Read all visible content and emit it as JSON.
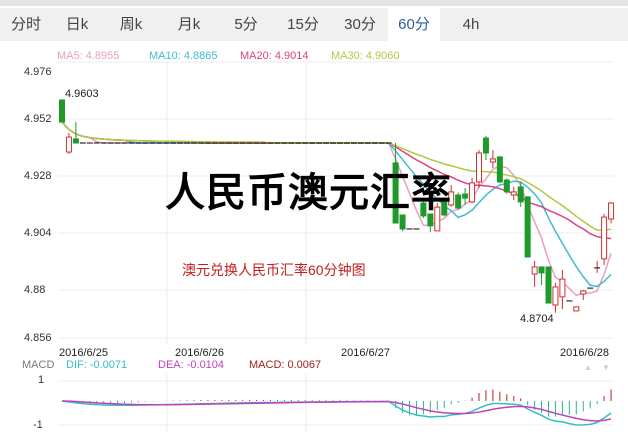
{
  "tabs": [
    {
      "label": "分时"
    },
    {
      "label": "日k"
    },
    {
      "label": "周k"
    },
    {
      "label": "月k"
    },
    {
      "label": "5分"
    },
    {
      "label": "15分"
    },
    {
      "label": "30分"
    },
    {
      "label": "60分",
      "active": true
    },
    {
      "label": "4h"
    }
  ],
  "ma_legend": {
    "ma5": "MA5: 4.8955",
    "ma10": "MA10: 4.8865",
    "ma20": "MA20: 4.9014",
    "ma30": "MA30: 4.9060"
  },
  "macd_legend": {
    "label": "MACD",
    "dif": "DIF: -0.0071",
    "dea": "DEA: -0.0104",
    "macd": "MACD: 0.0067"
  },
  "overlay": {
    "title": "人民币澳元汇率",
    "subtitle": "澳元兑换人民币汇率60分钟图"
  },
  "colors": {
    "up": "#d03030",
    "down": "#1f9a2a",
    "ma5": "#e8a0c0",
    "ma10": "#40bcd0",
    "ma20": "#e04080",
    "ma30": "#b0c840",
    "dif": "#30c0c8",
    "dea": "#c040c0"
  },
  "chart_data": {
    "type": "candlestick",
    "y_ticks": [
      "4.976",
      "4.952",
      "4.928",
      "4.904",
      "4.88",
      "4.856"
    ],
    "ylim": [
      4.856,
      4.976
    ],
    "x_ticks": [
      {
        "label": "2016/6/25",
        "index": 0
      },
      {
        "label": "2016/6/26",
        "index": 16
      },
      {
        "label": "2016/6/27",
        "index": 40
      },
      {
        "label": "2016/6/28",
        "index": 72
      }
    ],
    "annotations": {
      "max": "4.9603",
      "min": "4.8704"
    },
    "macd_ticks": [
      "1",
      "-1"
    ],
    "candles_ohlc": [
      [
        4.96,
        4.9603,
        4.9507,
        4.9507
      ],
      [
        4.9381,
        4.9461,
        4.9373,
        4.9444
      ],
      [
        4.9436,
        4.9507,
        4.9419,
        4.9419
      ],
      [
        4.9419,
        4.9419,
        4.9419,
        4.9419
      ],
      [
        4.9419,
        4.9419,
        4.9419,
        4.9419
      ],
      [
        4.9419,
        4.9419,
        4.9419,
        4.9419
      ],
      [
        4.9419,
        4.9419,
        4.9419,
        4.9419
      ],
      [
        4.9419,
        4.9419,
        4.9419,
        4.9419
      ],
      [
        4.9419,
        4.9419,
        4.9419,
        4.9419
      ],
      [
        4.9419,
        4.9419,
        4.9419,
        4.9419
      ],
      [
        4.9419,
        4.9419,
        4.9419,
        4.9419
      ],
      [
        4.9419,
        4.9419,
        4.9419,
        4.9419
      ],
      [
        4.9419,
        4.9419,
        4.9419,
        4.9419
      ],
      [
        4.9419,
        4.9419,
        4.9419,
        4.9419
      ],
      [
        4.9419,
        4.9419,
        4.9419,
        4.9419
      ],
      [
        4.9419,
        4.9419,
        4.9419,
        4.9419
      ],
      [
        4.9419,
        4.9419,
        4.9419,
        4.9419
      ],
      [
        4.9419,
        4.9419,
        4.9419,
        4.9419
      ],
      [
        4.9419,
        4.9419,
        4.9419,
        4.9419
      ],
      [
        4.9419,
        4.9419,
        4.9419,
        4.9419
      ],
      [
        4.9419,
        4.9419,
        4.9419,
        4.9419
      ],
      [
        4.9419,
        4.9419,
        4.9419,
        4.9419
      ],
      [
        4.9419,
        4.9419,
        4.9419,
        4.9419
      ],
      [
        4.9419,
        4.9419,
        4.9419,
        4.9419
      ],
      [
        4.9419,
        4.9419,
        4.9419,
        4.9419
      ],
      [
        4.9419,
        4.9419,
        4.9419,
        4.9419
      ],
      [
        4.9419,
        4.9419,
        4.9419,
        4.9419
      ],
      [
        4.9419,
        4.9419,
        4.9419,
        4.9419
      ],
      [
        4.9419,
        4.9419,
        4.9419,
        4.9419
      ],
      [
        4.9419,
        4.9419,
        4.9419,
        4.9419
      ],
      [
        4.9419,
        4.9419,
        4.9419,
        4.9419
      ],
      [
        4.9419,
        4.9419,
        4.9419,
        4.9419
      ],
      [
        4.9419,
        4.9419,
        4.9419,
        4.9419
      ],
      [
        4.9419,
        4.9419,
        4.9419,
        4.9419
      ],
      [
        4.9419,
        4.9419,
        4.9419,
        4.9419
      ],
      [
        4.9419,
        4.9419,
        4.9419,
        4.9419
      ],
      [
        4.9419,
        4.9419,
        4.9419,
        4.9419
      ],
      [
        4.9419,
        4.9419,
        4.9419,
        4.9419
      ],
      [
        4.9419,
        4.9419,
        4.9419,
        4.9419
      ],
      [
        4.9419,
        4.9419,
        4.9419,
        4.9419
      ],
      [
        4.9419,
        4.9419,
        4.9419,
        4.9419
      ],
      [
        4.9419,
        4.9419,
        4.9419,
        4.9419
      ],
      [
        4.9419,
        4.9419,
        4.9419,
        4.9419
      ],
      [
        4.9419,
        4.9419,
        4.9419,
        4.9419
      ],
      [
        4.9419,
        4.9419,
        4.9419,
        4.9419
      ],
      [
        4.9419,
        4.9419,
        4.9419,
        4.9419
      ],
      [
        4.9419,
        4.9419,
        4.9419,
        4.9419
      ],
      [
        4.9419,
        4.9419,
        4.9419,
        4.9419
      ],
      [
        4.9335,
        4.9419,
        4.9082,
        4.9082
      ],
      [
        4.9116,
        4.9116,
        4.9048,
        4.9057
      ],
      [
        4.9057,
        4.9057,
        4.9057,
        4.9057
      ],
      [
        4.9057,
        4.9057,
        4.9057,
        4.9057
      ],
      [
        4.9166,
        4.9187,
        4.9103,
        4.9112
      ],
      [
        4.912,
        4.912,
        4.9044,
        4.907
      ],
      [
        4.9049,
        4.9166,
        4.9049,
        4.9149
      ],
      [
        4.9179,
        4.919,
        4.911,
        4.9116
      ],
      [
        4.9158,
        4.9242,
        4.915,
        4.9213
      ],
      [
        4.92,
        4.921,
        4.914,
        4.9145
      ],
      [
        4.9204,
        4.923,
        4.9158,
        4.9187
      ],
      [
        4.9171,
        4.9272,
        4.9165,
        4.9251
      ],
      [
        4.9255,
        4.9389,
        4.923,
        4.9377
      ],
      [
        4.944,
        4.9448,
        4.9347,
        4.9377
      ],
      [
        4.9339,
        4.9389,
        4.9314,
        4.9352
      ],
      [
        4.936,
        4.9365,
        4.925,
        4.9255
      ],
      [
        4.9263,
        4.927,
        4.9205,
        4.9213
      ],
      [
        4.92,
        4.9234,
        4.9179,
        4.9213
      ],
      [
        4.9234,
        4.9255,
        4.915,
        4.9171
      ],
      [
        4.9192,
        4.9195,
        4.8939,
        4.8939
      ],
      [
        4.8867,
        4.8922,
        4.8813,
        4.8897
      ],
      [
        4.8897,
        4.8897,
        4.8821,
        4.8872
      ],
      [
        4.8897,
        4.8897,
        4.8745,
        4.8745
      ],
      [
        4.8737,
        4.883,
        4.8704,
        4.8813
      ],
      [
        4.8771,
        4.8884,
        4.872,
        4.8846
      ],
      [
        4.8754,
        4.8754,
        4.8754,
        4.8754
      ],
      [
        4.8712,
        4.8729,
        4.8712,
        4.8729
      ],
      [
        4.8783,
        4.88,
        4.8758,
        4.8796
      ],
      [
        4.8808,
        4.8808,
        4.8808,
        4.8808
      ],
      [
        4.8893,
        4.8922,
        4.8872,
        4.8893
      ],
      [
        4.8931,
        4.912,
        4.8905,
        4.9107
      ],
      [
        4.9099,
        4.917,
        4.908,
        4.9166
      ]
    ]
  }
}
